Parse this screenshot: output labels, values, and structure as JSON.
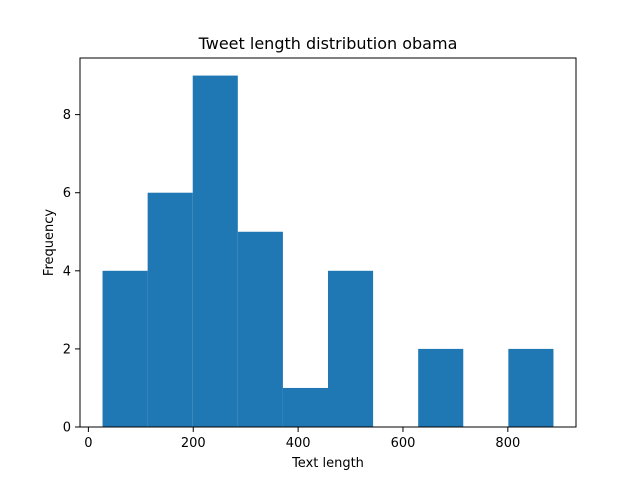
{
  "chart_data": {
    "type": "bar",
    "title": "Tweet length distribution obama",
    "xlabel": "Text length",
    "ylabel": "Frequency",
    "bin_edges": [
      27,
      113,
      199,
      285,
      371,
      457,
      543,
      629,
      715,
      801,
      887
    ],
    "values": [
      4,
      6,
      9,
      5,
      1,
      4,
      0,
      2,
      0,
      2
    ],
    "xlim": [
      -16,
      930
    ],
    "ylim": [
      0,
      9.45
    ],
    "xticks": [
      0,
      200,
      400,
      600,
      800
    ],
    "xtick_labels": [
      "0",
      "200",
      "400",
      "600",
      "800"
    ],
    "yticks": [
      0,
      2,
      4,
      6,
      8
    ],
    "ytick_labels": [
      "0",
      "2",
      "4",
      "6",
      "8"
    ],
    "bar_color": "#1f77b4",
    "grid": false
  }
}
